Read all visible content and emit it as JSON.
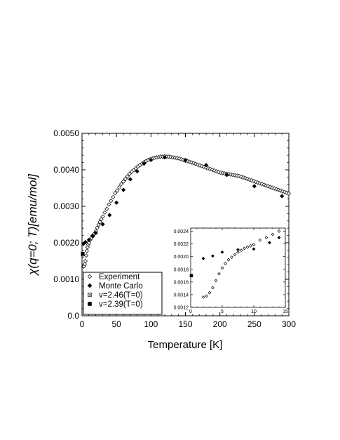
{
  "chart_data": {
    "type": "scatter",
    "xlabel": "Temperature [K]",
    "ylabel": "χ(q=0; T)[emu/mol]",
    "xlim": [
      0,
      300
    ],
    "ylim": [
      0,
      0.005
    ],
    "xticks": [
      "0",
      "50",
      "100",
      "150",
      "200",
      "250",
      "300"
    ],
    "yticks": [
      "0.0",
      "0.0010",
      "0.0020",
      "0.0030",
      "0.0040",
      "0.0050"
    ],
    "grid": false,
    "legend_position": "bottom-left",
    "series": [
      {
        "name": "Experiment",
        "marker": "open-diamond",
        "x": [
          2,
          3,
          4,
          5,
          6,
          7,
          8,
          9,
          10,
          12,
          14,
          16,
          18,
          20,
          22,
          24,
          26,
          28,
          30,
          33,
          36,
          39,
          42,
          45,
          48,
          51,
          54,
          57,
          60,
          63,
          66,
          69,
          72,
          75,
          78,
          81,
          84,
          87,
          90,
          93,
          96,
          99,
          102,
          105,
          108,
          111,
          114,
          117,
          120,
          123,
          126,
          129,
          132,
          135,
          138,
          141,
          144,
          147,
          150,
          153,
          156,
          159,
          162,
          165,
          168,
          171,
          174,
          177,
          180,
          183,
          186,
          189,
          192,
          195,
          198,
          201,
          204,
          207,
          210,
          213,
          216,
          219,
          222,
          225,
          228,
          231,
          234,
          237,
          240,
          243,
          246,
          249,
          252,
          255,
          258,
          261,
          264,
          267,
          270,
          273,
          276,
          279,
          282,
          285,
          288,
          291,
          294,
          297,
          300
        ],
        "y": [
          0.00135,
          0.00136,
          0.00142,
          0.0015,
          0.00165,
          0.00178,
          0.00188,
          0.00195,
          0.002,
          0.00208,
          0.00214,
          0.00219,
          0.00225,
          0.00232,
          0.00241,
          0.00249,
          0.00257,
          0.00265,
          0.00272,
          0.00283,
          0.00293,
          0.00305,
          0.00315,
          0.00325,
          0.00336,
          0.00343,
          0.00352,
          0.00361,
          0.00368,
          0.00375,
          0.00382,
          0.00389,
          0.00395,
          0.00399,
          0.00404,
          0.00409,
          0.00413,
          0.00417,
          0.00421,
          0.00424,
          0.00427,
          0.00429,
          0.00431,
          0.00433,
          0.00434,
          0.00435,
          0.00436,
          0.00436,
          0.00437,
          0.00436,
          0.00436,
          0.00435,
          0.00434,
          0.00433,
          0.00432,
          0.00431,
          0.00429,
          0.00427,
          0.00425,
          0.00424,
          0.00422,
          0.0042,
          0.00418,
          0.00416,
          0.00414,
          0.00412,
          0.0041,
          0.00408,
          0.00406,
          0.00404,
          0.00402,
          0.004,
          0.00398,
          0.00396,
          0.00394,
          0.00392,
          0.00391,
          0.0039,
          0.00389,
          0.00388,
          0.00387,
          0.00386,
          0.00385,
          0.00384,
          0.00383,
          0.00381,
          0.00379,
          0.00377,
          0.00375,
          0.00373,
          0.00371,
          0.00369,
          0.00367,
          0.00365,
          0.00363,
          0.00361,
          0.00359,
          0.00357,
          0.00355,
          0.00353,
          0.00351,
          0.00349,
          0.00347,
          0.00345,
          0.00343,
          0.00341,
          0.00339,
          0.00337,
          0.00335
        ]
      },
      {
        "name": "Monte Carlo",
        "marker": "filled-diamond",
        "x": [
          2,
          5,
          10,
          15,
          20,
          30,
          40,
          50,
          60,
          70,
          80,
          90,
          100,
          120,
          150,
          180,
          210,
          250,
          290
        ],
        "y": [
          0.00197,
          0.00202,
          0.00208,
          0.00219,
          0.00227,
          0.00251,
          0.00276,
          0.0031,
          0.00345,
          0.00374,
          0.00396,
          0.00417,
          0.00427,
          0.00434,
          0.00427,
          0.00413,
          0.00386,
          0.00355,
          0.00328
        ]
      },
      {
        "name": "v=2.46(T=0)",
        "marker": "hatched-square",
        "x": [
          0
        ],
        "y": [
          0.00168
        ]
      },
      {
        "name": "v=2.39(T=0)",
        "marker": "filled-square",
        "x": [
          0
        ],
        "y": [
          0.0017
        ]
      }
    ],
    "inset": {
      "xlim": [
        0,
        15
      ],
      "ylim": [
        0.0012,
        0.00245
      ],
      "xticks": [
        "0",
        "5",
        "10",
        "15"
      ],
      "yticks": [
        "0.0012",
        "0.0014",
        "0.0016",
        "0.0018",
        "0.0020",
        "0.0022",
        "0.0024"
      ],
      "experiment": {
        "x": [
          2,
          2.5,
          3,
          3.5,
          4,
          4.5,
          5,
          5.5,
          6,
          6.5,
          7,
          7.5,
          8,
          8.5,
          9,
          9.5,
          10,
          11,
          12,
          13,
          14
        ],
        "y": [
          0.00136,
          0.00138,
          0.00143,
          0.00151,
          0.00162,
          0.00173,
          0.00182,
          0.00189,
          0.00195,
          0.00199,
          0.00203,
          0.00207,
          0.0021,
          0.00213,
          0.00215,
          0.00217,
          0.00219,
          0.00226,
          0.0023,
          0.00235,
          0.0024
        ]
      },
      "monte_carlo": {
        "x": [
          2,
          3.5,
          5,
          7.5,
          10,
          12.5,
          14
        ],
        "y": [
          0.00197,
          0.00201,
          0.00207,
          0.00211,
          0.00212,
          0.00222,
          0.0023
        ]
      },
      "t0_square": {
        "x": [
          0
        ],
        "y": [
          0.0017
        ]
      }
    }
  }
}
